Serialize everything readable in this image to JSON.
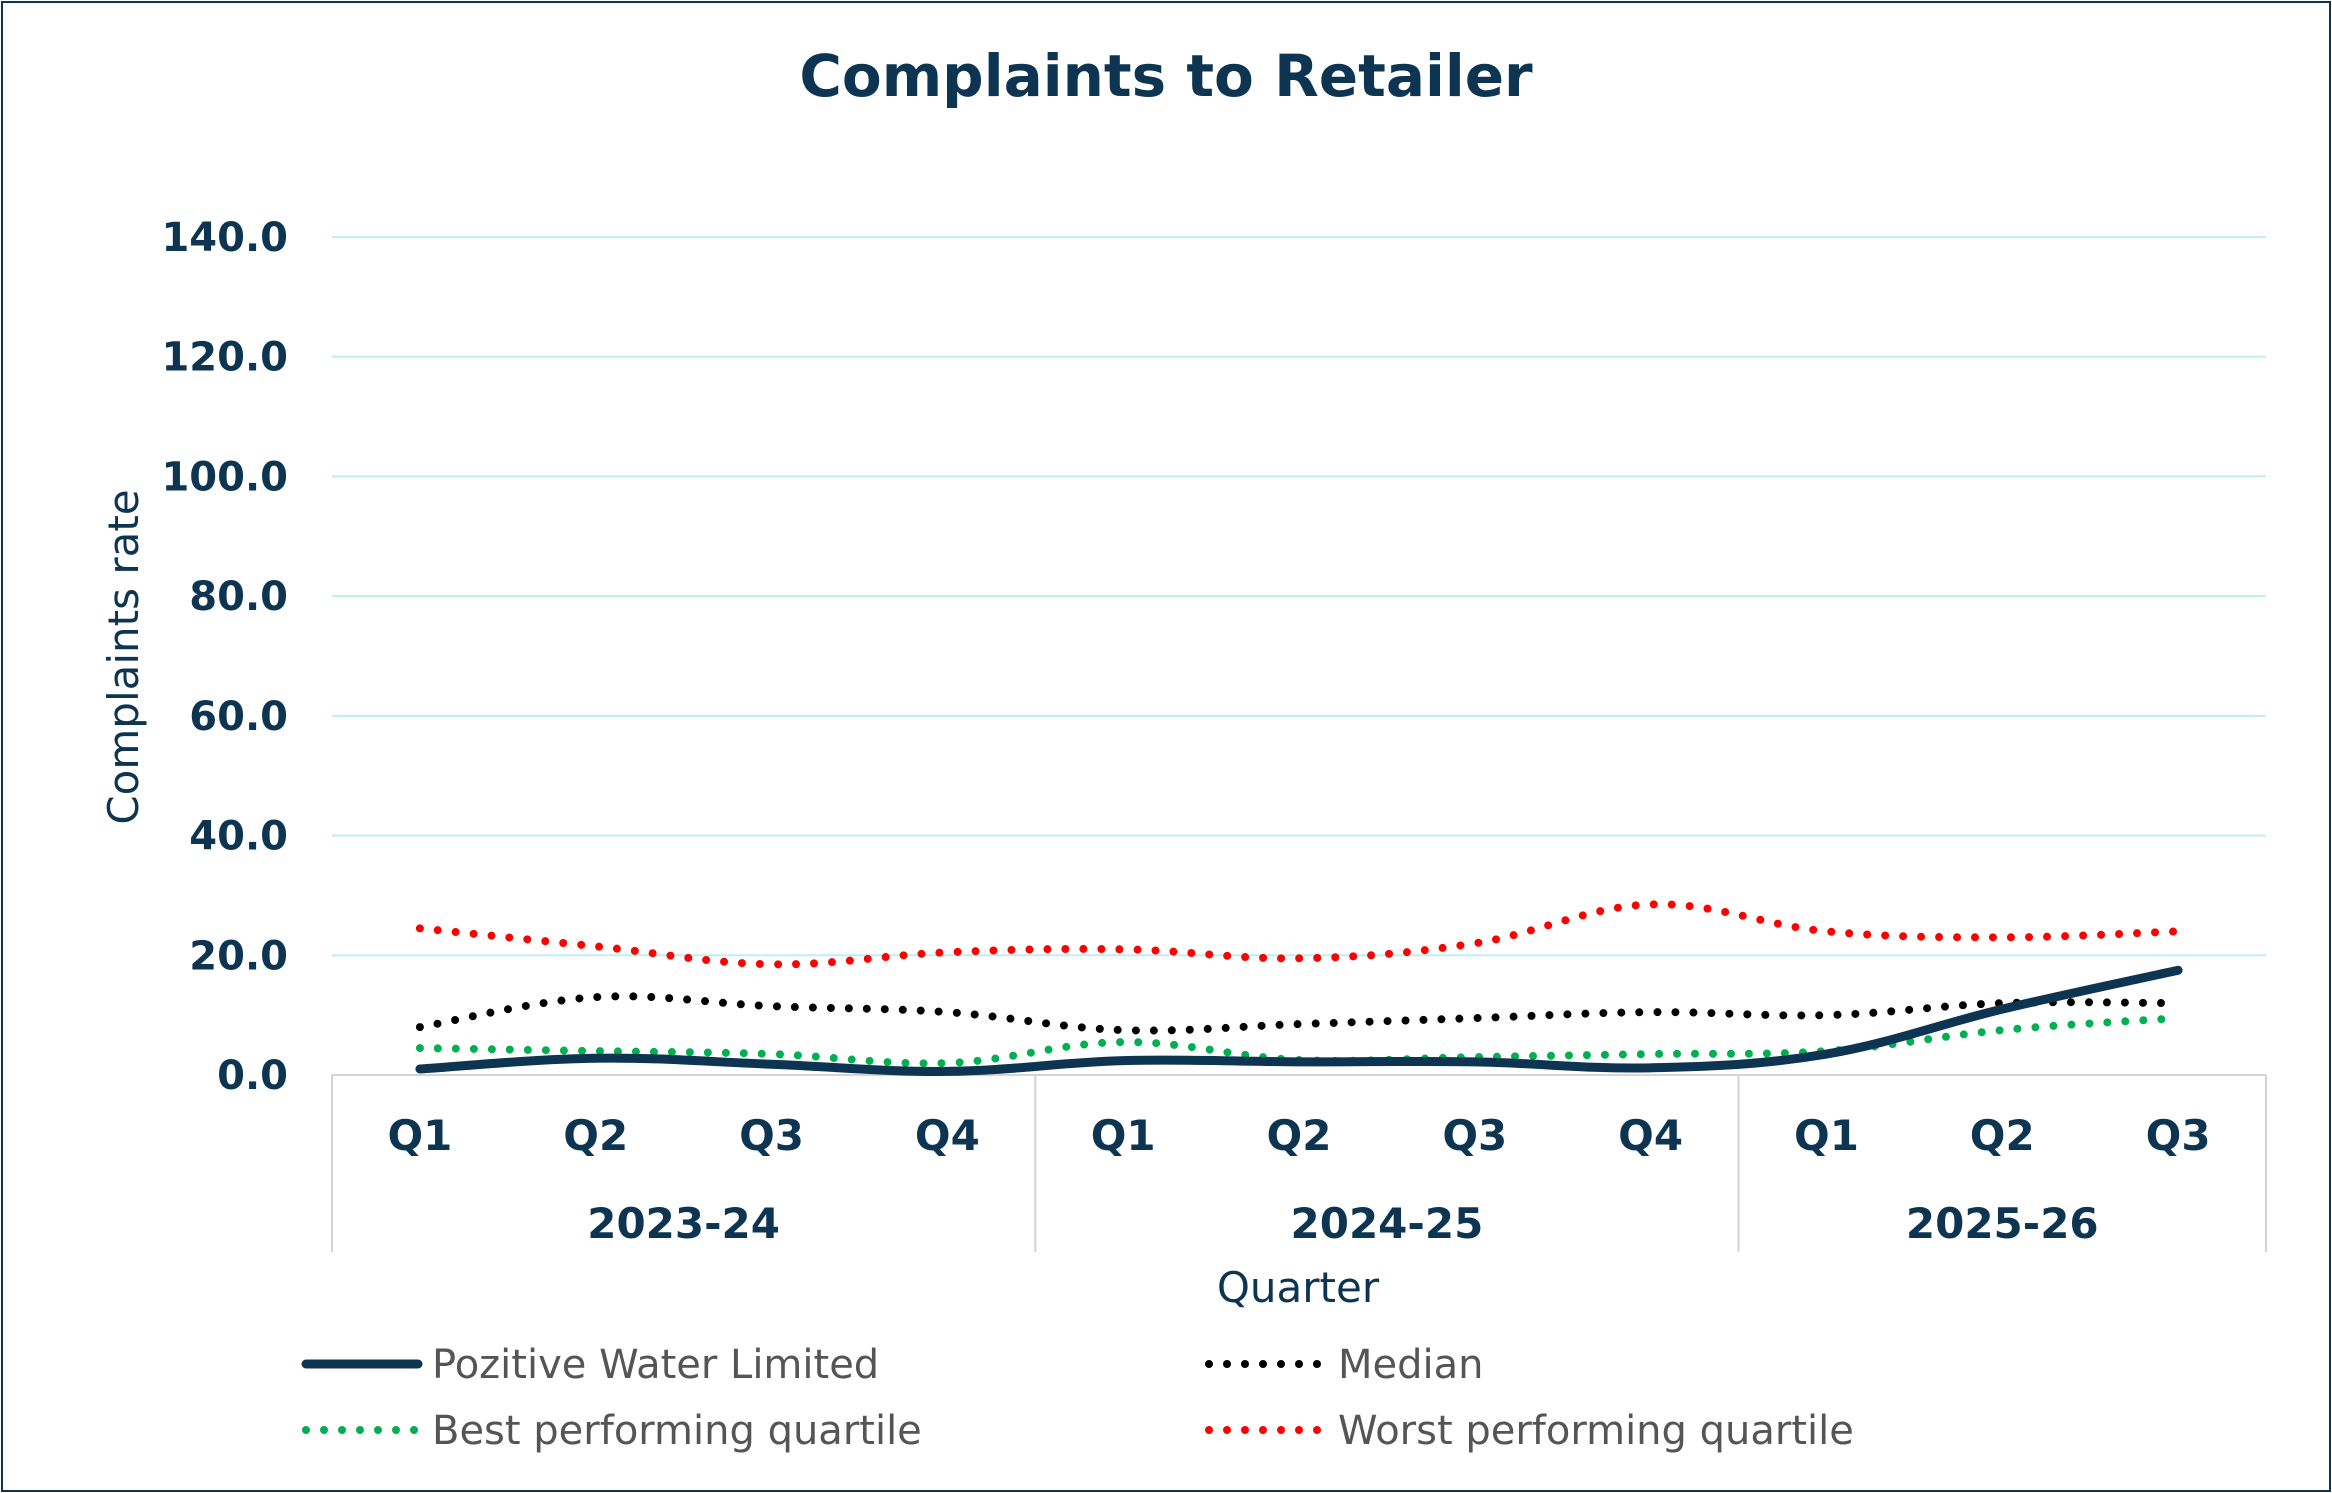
{
  "chart_data": {
    "type": "line",
    "title": "Complaints to Retailer",
    "xlabel": "Quarter",
    "ylabel": "Complaints rate",
    "ylim": [
      0,
      140
    ],
    "yticks": [
      "0.0",
      "20.0",
      "40.0",
      "60.0",
      "80.0",
      "100.0",
      "120.0",
      "140.0"
    ],
    "categories": [
      "Q1",
      "Q2",
      "Q3",
      "Q4",
      "Q1",
      "Q2",
      "Q3",
      "Q4",
      "Q1",
      "Q2",
      "Q3"
    ],
    "groups": [
      {
        "label": "2023-24",
        "count": 4
      },
      {
        "label": "2024-25",
        "count": 4
      },
      {
        "label": "2025-26",
        "count": 3
      }
    ],
    "grid": true,
    "legend_position": "bottom",
    "series": [
      {
        "name": "Pozitive Water Limited",
        "color": "#0d3552",
        "style": "solid",
        "values": [
          1.0,
          2.8,
          1.8,
          0.6,
          2.4,
          2.2,
          2.2,
          1.2,
          3.5,
          11.0,
          17.5
        ]
      },
      {
        "name": "Median",
        "color": "#000000",
        "style": "dotted",
        "values": [
          8.0,
          13.0,
          11.5,
          10.5,
          7.5,
          8.5,
          9.5,
          10.5,
          10.0,
          12.0,
          12.0
        ]
      },
      {
        "name": "Best performing quartile",
        "color": "#00b050",
        "style": "dotted",
        "values": [
          4.5,
          4.0,
          3.5,
          2.0,
          5.5,
          2.5,
          3.0,
          3.5,
          4.0,
          7.5,
          9.5
        ]
      },
      {
        "name": "Worst performing quartile",
        "color": "#ff0000",
        "style": "dotted",
        "values": [
          24.5,
          21.5,
          18.5,
          20.5,
          21.0,
          19.5,
          22.0,
          28.5,
          24.0,
          23.0,
          24.0
        ]
      }
    ]
  }
}
